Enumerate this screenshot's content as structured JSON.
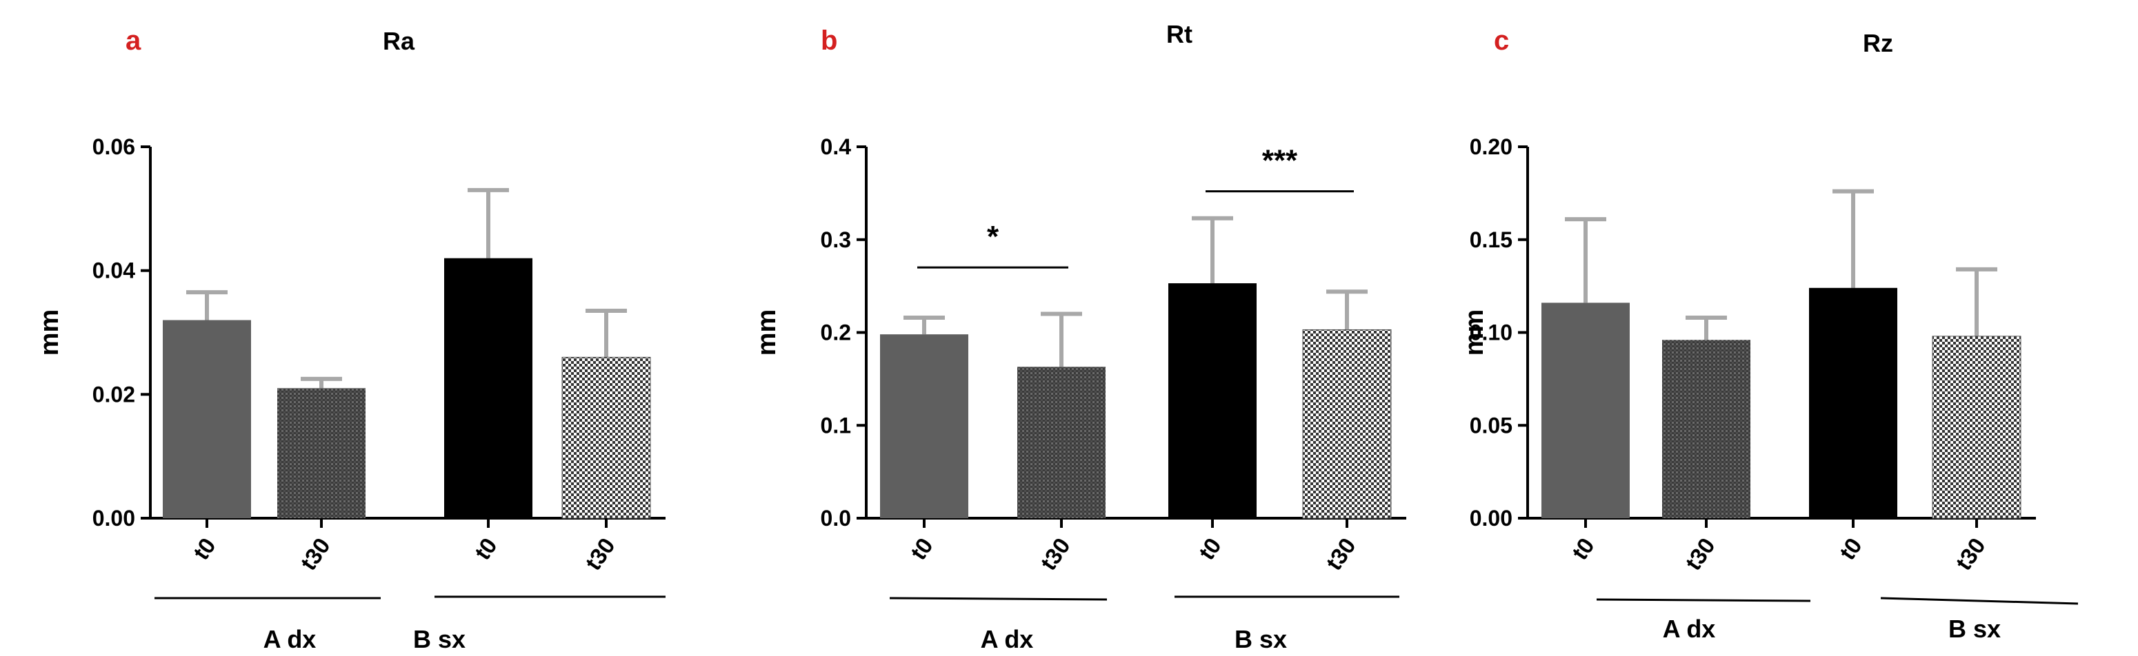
{
  "colors": {
    "letter": "#d42020",
    "bar_solid_gray": "#5f5f5f",
    "bar_black": "#000000",
    "error_bar": "#a8a8a8",
    "axis": "#000000"
  },
  "chart_data": [
    {
      "type": "bar",
      "panel_letter": "a",
      "title": "Ra",
      "ylabel": "mm",
      "ylim": [
        0,
        0.06
      ],
      "yticks": [
        "0.00",
        "0.02",
        "0.04",
        "0.06"
      ],
      "categories": [
        "t0",
        "t30",
        "t0",
        "t30"
      ],
      "groups": [
        "A dx",
        "B sx"
      ],
      "values": [
        0.032,
        0.021,
        0.042,
        0.026
      ],
      "errors": [
        0.0045,
        0.0015,
        0.011,
        0.0075
      ],
      "fills": [
        "solid-gray",
        "fine-dots",
        "solid-black",
        "checker"
      ],
      "significance": []
    },
    {
      "type": "bar",
      "panel_letter": "b",
      "title": "Rt",
      "ylabel": "mm",
      "ylim": [
        0,
        0.4
      ],
      "yticks": [
        "0.0",
        "0.1",
        "0.2",
        "0.3",
        "0.4"
      ],
      "categories": [
        "t0",
        "t30",
        "t0",
        "t30"
      ],
      "groups": [
        "A dx",
        "B sx"
      ],
      "values": [
        0.198,
        0.163,
        0.253,
        0.203
      ],
      "errors": [
        0.018,
        0.057,
        0.07,
        0.041
      ],
      "fills": [
        "solid-gray",
        "fine-dots",
        "solid-black",
        "checker"
      ],
      "significance": [
        {
          "label": "*",
          "from": 0,
          "to": 1,
          "y": 0.27
        },
        {
          "label": "***",
          "from": 2,
          "to": 3,
          "y": 0.352
        }
      ]
    },
    {
      "type": "bar",
      "panel_letter": "c",
      "title": "Rz",
      "ylabel": "mm",
      "ylim": [
        0,
        0.2
      ],
      "yticks": [
        "0.00",
        "0.05",
        "0.10",
        "0.15",
        "0.20"
      ],
      "categories": [
        "t0",
        "t30",
        "t0",
        "t30"
      ],
      "groups": [
        "A dx",
        "B sx"
      ],
      "values": [
        0.116,
        0.096,
        0.124,
        0.098
      ],
      "errors": [
        0.045,
        0.012,
        0.052,
        0.036
      ],
      "fills": [
        "solid-gray",
        "fine-dots",
        "solid-black",
        "checker"
      ],
      "significance": []
    }
  ]
}
